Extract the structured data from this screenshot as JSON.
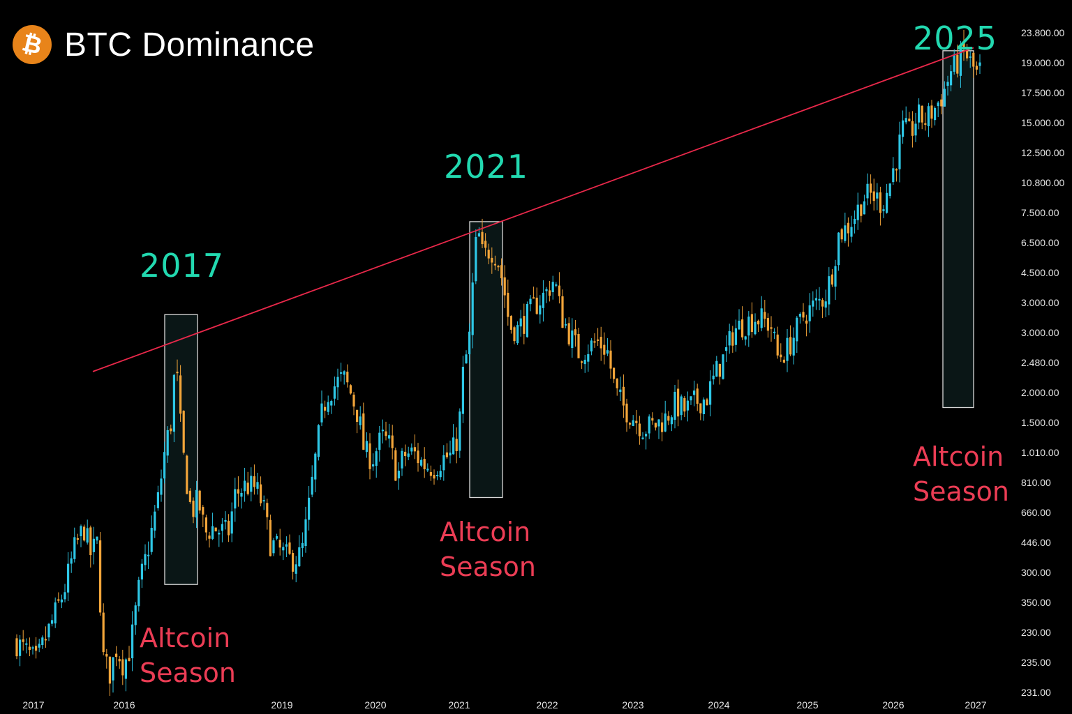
{
  "header": {
    "title": "BTC Dominance",
    "logo_icon": "bitcoin-logo-icon",
    "logo_color": "#e8841a"
  },
  "colors": {
    "up": "#2ec7e6",
    "down": "#f2a53a",
    "trendline": "#e8284a",
    "year_label": "#22d9b0",
    "season_label": "#ec3d55",
    "highlight_border": "#d9d9d9"
  },
  "annotations": {
    "cycles": [
      {
        "year": "2017",
        "season_line1": "Altcoin",
        "season_line2": "Season"
      },
      {
        "year": "2021",
        "season_line1": "Altcoin",
        "season_line2": "Season"
      },
      {
        "year": "2025",
        "season_line1": "Altcoin",
        "season_line2": "Season"
      }
    ]
  },
  "chart_data": {
    "type": "candlestick",
    "title": "BTC Dominance",
    "x_tick_labels": [
      "2017",
      "2016",
      "2019",
      "2020",
      "2021",
      "2022",
      "2023",
      "2024",
      "2025",
      "2026",
      "2027"
    ],
    "y_tick_labels": [
      "23.800.00",
      "19.000.00",
      "17.500.00",
      "15.000.00",
      "12.500.00",
      "10.800.00",
      "7.500.00",
      "6.500.00",
      "4.500.00",
      "3.000.00",
      "3.000.00",
      "2.480.00",
      "2.000.00",
      "1.500.00",
      "1.010.00",
      "810.00",
      "660.00",
      "446.00",
      "300.00",
      "350.00",
      "230.00",
      "235.00",
      "231.00"
    ],
    "y_tick_rank_scale": "tick labels printed in the order shown; price series given as rank position along that scale (0 = 231.00 bottom, 22 = 23.800.00 top)",
    "price_path_ranks": [
      [
        0,
        1.7
      ],
      [
        18,
        1.3
      ],
      [
        30,
        1.0
      ],
      [
        50,
        2.2
      ],
      [
        70,
        3.4
      ],
      [
        85,
        4.8
      ],
      [
        98,
        5.5
      ],
      [
        108,
        4.6
      ],
      [
        118,
        5.0
      ],
      [
        125,
        1.2
      ],
      [
        135,
        0.6
      ],
      [
        145,
        1.5
      ],
      [
        155,
        0.9
      ],
      [
        165,
        1.5
      ],
      [
        178,
        3.6
      ],
      [
        192,
        5.0
      ],
      [
        205,
        6.5
      ],
      [
        215,
        8.2
      ],
      [
        223,
        9.0
      ],
      [
        230,
        11.3
      ],
      [
        234,
        9.5
      ],
      [
        242,
        7.6
      ],
      [
        252,
        6.0
      ],
      [
        262,
        6.4
      ],
      [
        272,
        5.3
      ],
      [
        282,
        5.5
      ],
      [
        292,
        5.4
      ],
      [
        305,
        5.3
      ],
      [
        315,
        6.6
      ],
      [
        330,
        6.9
      ],
      [
        345,
        6.8
      ],
      [
        355,
        6.2
      ],
      [
        365,
        5.0
      ],
      [
        380,
        4.7
      ],
      [
        395,
        4.4
      ],
      [
        410,
        4.6
      ],
      [
        420,
        6.1
      ],
      [
        430,
        7.8
      ],
      [
        440,
        9.4
      ],
      [
        448,
        10.0
      ],
      [
        460,
        10.3
      ],
      [
        470,
        10.5
      ],
      [
        480,
        10.0
      ],
      [
        492,
        9.2
      ],
      [
        500,
        8.0
      ],
      [
        512,
        7.8
      ],
      [
        525,
        8.5
      ],
      [
        535,
        8.3
      ],
      [
        548,
        7.2
      ],
      [
        556,
        7.9
      ],
      [
        570,
        8.0
      ],
      [
        585,
        7.6
      ],
      [
        600,
        7.5
      ],
      [
        612,
        7.8
      ],
      [
        625,
        7.9
      ],
      [
        635,
        8.6
      ],
      [
        642,
        10.8
      ],
      [
        650,
        11.6
      ],
      [
        656,
        13.8
      ],
      [
        662,
        15.5
      ],
      [
        670,
        14.5
      ],
      [
        680,
        14.8
      ],
      [
        690,
        14.6
      ],
      [
        700,
        13.5
      ],
      [
        708,
        12.2
      ],
      [
        720,
        12.1
      ],
      [
        735,
        12.6
      ],
      [
        748,
        13.0
      ],
      [
        760,
        13.3
      ],
      [
        772,
        13.8
      ],
      [
        782,
        12.6
      ],
      [
        795,
        11.9
      ],
      [
        808,
        11.3
      ],
      [
        820,
        11.5
      ],
      [
        835,
        11.7
      ],
      [
        848,
        11.4
      ],
      [
        860,
        10.0
      ],
      [
        872,
        9.5
      ],
      [
        885,
        9.2
      ],
      [
        900,
        8.8
      ],
      [
        915,
        8.9
      ],
      [
        930,
        9.1
      ],
      [
        945,
        9.6
      ],
      [
        960,
        9.4
      ],
      [
        975,
        9.7
      ],
      [
        990,
        9.8
      ],
      [
        1005,
        10.7
      ],
      [
        1018,
        11.3
      ],
      [
        1030,
        12.1
      ],
      [
        1045,
        12.3
      ],
      [
        1060,
        12.5
      ],
      [
        1072,
        12.4
      ],
      [
        1083,
        12.2
      ],
      [
        1092,
        11.2
      ],
      [
        1105,
        11.4
      ],
      [
        1118,
        12.0
      ],
      [
        1130,
        12.6
      ],
      [
        1145,
        12.9
      ],
      [
        1160,
        13.2
      ],
      [
        1170,
        14.0
      ],
      [
        1180,
        15.3
      ],
      [
        1192,
        15.5
      ],
      [
        1205,
        16.0
      ],
      [
        1215,
        16.5
      ],
      [
        1228,
        16.6
      ],
      [
        1242,
        16.3
      ],
      [
        1252,
        16.9
      ],
      [
        1262,
        17.8
      ],
      [
        1272,
        18.8
      ],
      [
        1282,
        18.6
      ],
      [
        1292,
        19.2
      ],
      [
        1305,
        19.1
      ],
      [
        1318,
        19.5
      ],
      [
        1330,
        20.0
      ],
      [
        1340,
        20.7
      ],
      [
        1350,
        21.0
      ],
      [
        1360,
        21.4
      ],
      [
        1368,
        21.0
      ],
      [
        1378,
        20.6
      ],
      [
        1384,
        20.8
      ]
    ],
    "trendline_ranks": [
      [
        133,
        10.7
      ],
      [
        1395,
        21.5
      ]
    ],
    "highlight_ranges_ranks": [
      {
        "x_from": 228,
        "x_to": 283,
        "y_from": 3.6,
        "y_to": 12.6
      },
      {
        "x_from": 665,
        "x_to": 720,
        "y_from": 6.5,
        "y_to": 15.7
      },
      {
        "x_from": 1343,
        "x_to": 1395,
        "y_from": 9.5,
        "y_to": 21.4
      }
    ],
    "grid": false,
    "legend": "none"
  }
}
